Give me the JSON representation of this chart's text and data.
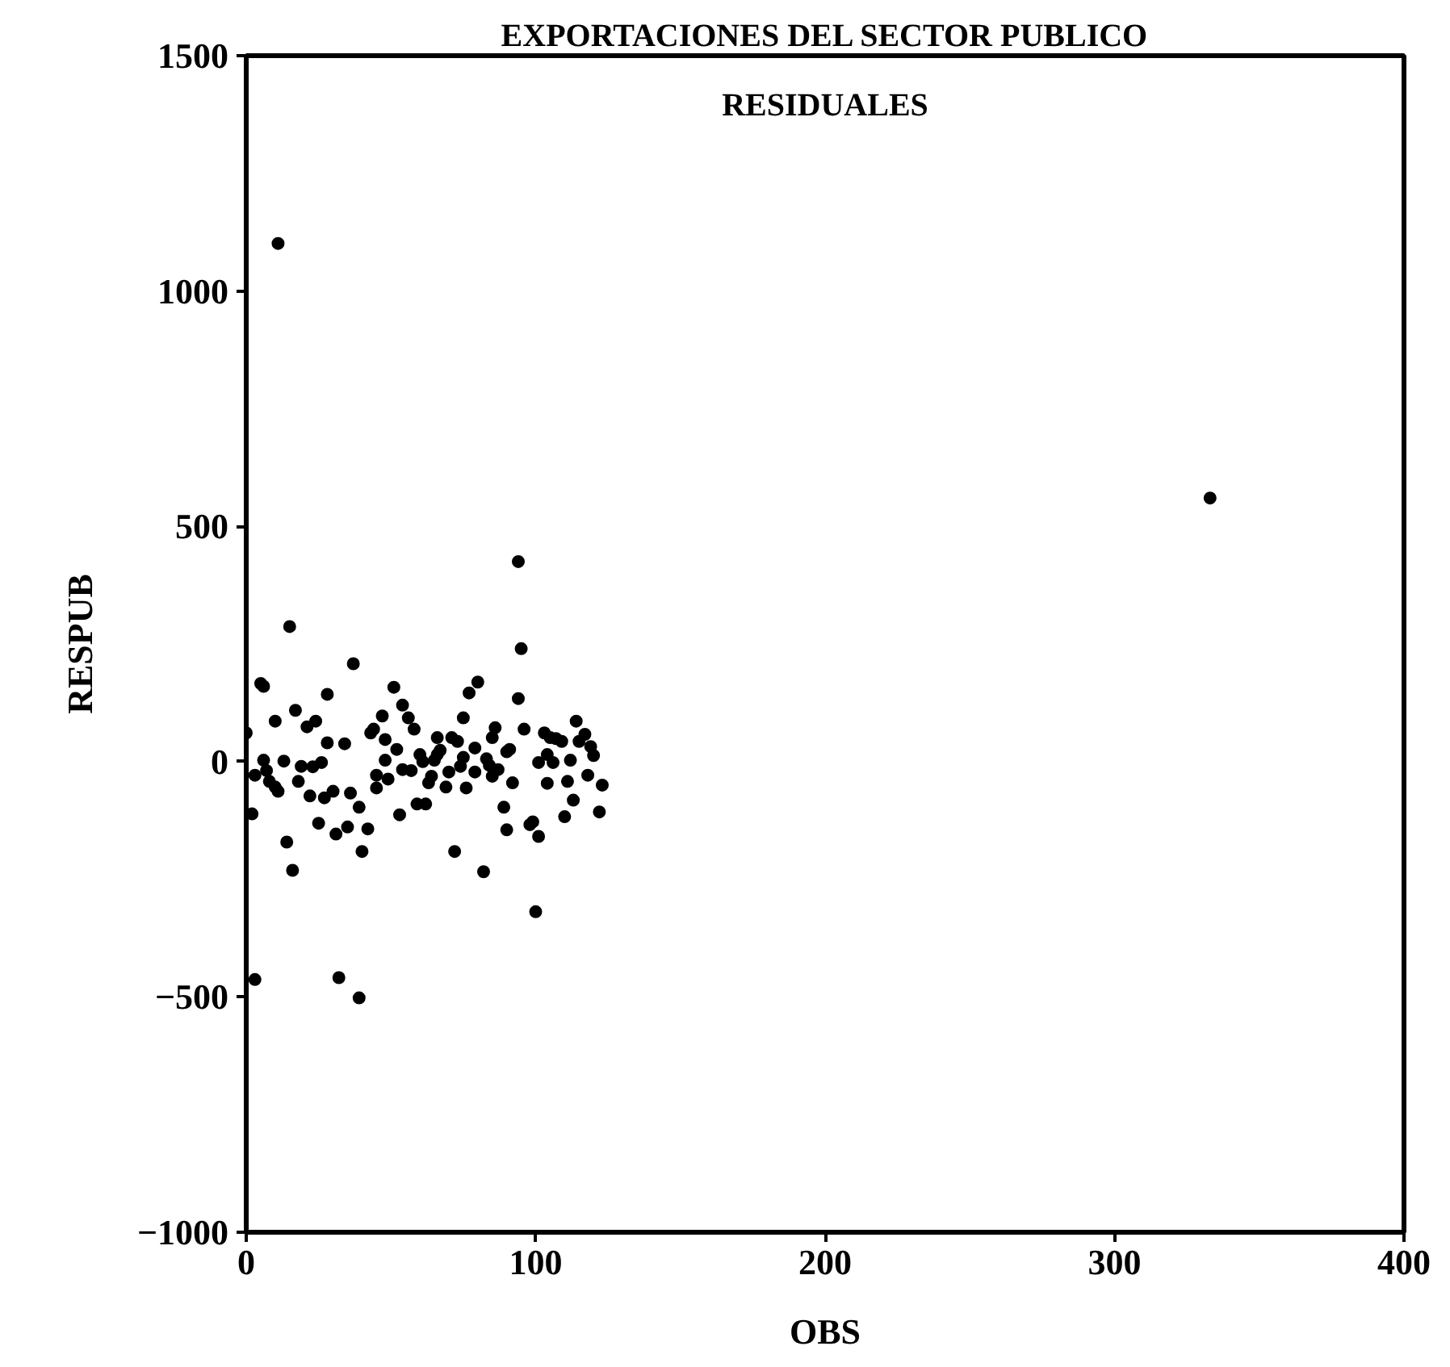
{
  "chart_data": {
    "type": "scatter",
    "title": "EXPORTACIONES DEL SECTOR PUBLICO",
    "subtitle": "RESIDUALES",
    "xlabel": "OBS",
    "ylabel": "RESPUB",
    "x": [
      0,
      2,
      3,
      3,
      5,
      6,
      6,
      7,
      8,
      10,
      11,
      10,
      13,
      14,
      15,
      16,
      17,
      18,
      19,
      21,
      24,
      22,
      23,
      26,
      25,
      27,
      28,
      28,
      30,
      31,
      32,
      34,
      35,
      36,
      37,
      39,
      39,
      40,
      42,
      43,
      44,
      45,
      45,
      47,
      48,
      48,
      49,
      51,
      52,
      53,
      54,
      56,
      58,
      54,
      57,
      59,
      62,
      60,
      61,
      63,
      64,
      65,
      66,
      67,
      66,
      69,
      70,
      71,
      73,
      72,
      75,
      74,
      75,
      76,
      77,
      80,
      79,
      79,
      82,
      83,
      84,
      85,
      85,
      86,
      87,
      89,
      90,
      90,
      91,
      92,
      94,
      95,
      96,
      98,
      99,
      100,
      101,
      101,
      103,
      104,
      105,
      106,
      107,
      109,
      104,
      110,
      111,
      112,
      113,
      114,
      115,
      117,
      118,
      119,
      120,
      122,
      123,
      11,
      94,
      333
    ],
    "values": [
      61,
      -111,
      -29,
      -463,
      166,
      160,
      3,
      -19,
      -42,
      -54,
      -63,
      86,
      1,
      -171,
      287,
      -231,
      109,
      -42,
      -10,
      74,
      86,
      -73,
      -11,
      -2,
      -131,
      -77,
      143,
      40,
      -63,
      -154,
      -459,
      38,
      -139,
      -67,
      208,
      -97,
      -502,
      -191,
      -143,
      61,
      69,
      -29,
      -56,
      97,
      47,
      3,
      -37,
      158,
      26,
      -113,
      120,
      93,
      69,
      -17,
      -19,
      -90,
      -90,
      15,
      0,
      -45,
      -31,
      3,
      15,
      24,
      51,
      -54,
      -22,
      51,
      43,
      -191,
      93,
      -10,
      9,
      -56,
      146,
      169,
      29,
      -22,
      -234,
      6,
      -8,
      -31,
      51,
      72,
      -17,
      -97,
      -145,
      21,
      26,
      -45,
      134,
      240,
      69,
      -134,
      -128,
      -319,
      -159,
      -2,
      61,
      15,
      51,
      -2,
      49,
      43,
      -46,
      -117,
      -42,
      3,
      -82,
      86,
      43,
      58,
      -29,
      32,
      13,
      -107,
      -50,
      1101,
      425,
      560
    ],
    "color": "#000000",
    "marker": "circle",
    "grid": false,
    "xlim": [
      0,
      400
    ],
    "ylim": [
      -1000,
      1500
    ],
    "xticks": [
      0,
      100,
      200,
      300,
      400
    ],
    "yticks": [
      -1000,
      -500,
      0,
      500,
      1000,
      1500
    ]
  }
}
